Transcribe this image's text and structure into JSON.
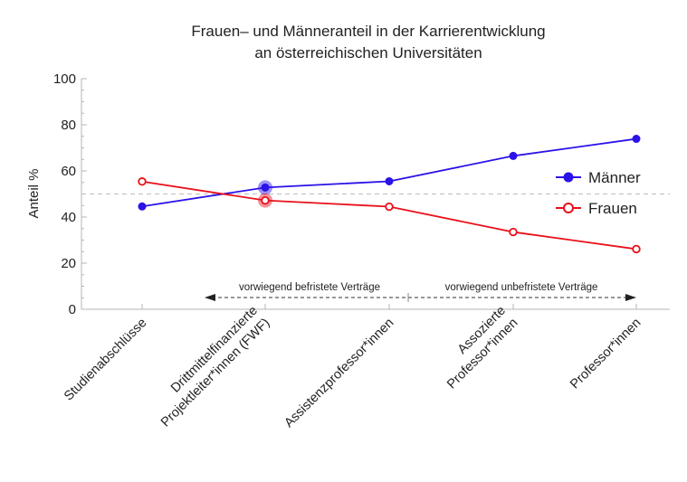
{
  "chart_data": {
    "type": "line",
    "title_line1": "Frauen– und Männeranteil in der Karrierentwicklung",
    "title_line2": "an österreichischen Universitäten",
    "ylabel": "Anteil %",
    "xlabel": "",
    "ylim": [
      0,
      100
    ],
    "yticks": [
      "0",
      "20",
      "40",
      "60",
      "80",
      "100"
    ],
    "reference_line": 50,
    "categories": [
      [
        "Studienabschlüsse"
      ],
      [
        "Drittmittelfinanzierte",
        "Projektleiter*innen (FWF)"
      ],
      [
        "Assistenzprofessor*innen"
      ],
      [
        "Assozierte",
        "Professor*innen"
      ],
      [
        "Professor*innen"
      ]
    ],
    "series": [
      {
        "name": "Männer",
        "color": "#2b12e8",
        "marker": "filled-circle",
        "values": [
          44.6,
          52.8,
          55.5,
          66.5,
          73.9
        ],
        "highlight_index": 1
      },
      {
        "name": "Frauen",
        "color": "#e8101a",
        "marker": "open-circle",
        "values": [
          55.4,
          47.2,
          44.5,
          33.5,
          26.1
        ],
        "highlight_index": 1
      }
    ],
    "legend_position": "right",
    "grid": false,
    "annotations": {
      "left": "vorwiegend befristete Verträge",
      "right": "vorwiegend unbefristete Verträge"
    }
  }
}
